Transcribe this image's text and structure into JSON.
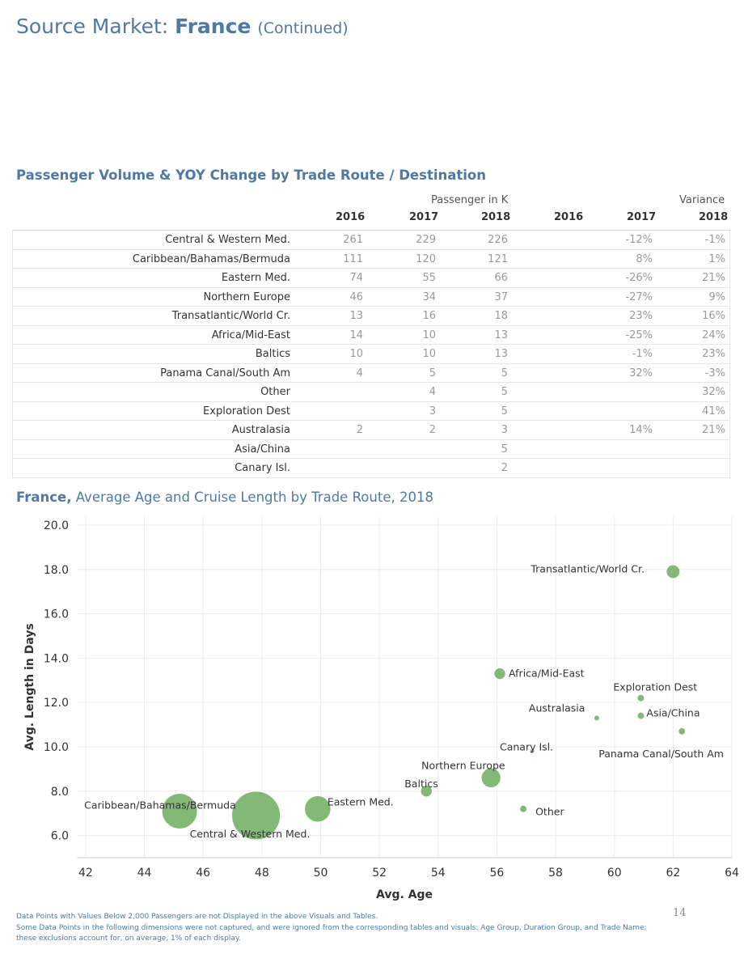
{
  "header": {
    "prefix": "Source Market:",
    "market": "France",
    "suffix": "(Continued)"
  },
  "table_section": {
    "title": "Passenger Volume & YOY Change by Trade Route / Destination",
    "group_passenger": "Passenger in K",
    "group_variance": "Variance",
    "years": [
      "2016",
      "2017",
      "2018",
      "2016",
      "2017",
      "2018"
    ],
    "rows": [
      {
        "route": "Central & Western Med.",
        "p2016": "261",
        "p2017": "229",
        "p2018": "226",
        "v2016": "",
        "v2017": "-12%",
        "v2018": "-1%"
      },
      {
        "route": "Caribbean/Bahamas/Bermuda",
        "p2016": "111",
        "p2017": "120",
        "p2018": "121",
        "v2016": "",
        "v2017": "8%",
        "v2018": "1%"
      },
      {
        "route": "Eastern Med.",
        "p2016": "74",
        "p2017": "55",
        "p2018": "66",
        "v2016": "",
        "v2017": "-26%",
        "v2018": "21%"
      },
      {
        "route": "Northern Europe",
        "p2016": "46",
        "p2017": "34",
        "p2018": "37",
        "v2016": "",
        "v2017": "-27%",
        "v2018": "9%"
      },
      {
        "route": "Transatlantic/World Cr.",
        "p2016": "13",
        "p2017": "16",
        "p2018": "18",
        "v2016": "",
        "v2017": "23%",
        "v2018": "16%"
      },
      {
        "route": "Africa/Mid-East",
        "p2016": "14",
        "p2017": "10",
        "p2018": "13",
        "v2016": "",
        "v2017": "-25%",
        "v2018": "24%"
      },
      {
        "route": "Baltics",
        "p2016": "10",
        "p2017": "10",
        "p2018": "13",
        "v2016": "",
        "v2017": "-1%",
        "v2018": "23%"
      },
      {
        "route": "Panama Canal/South Am",
        "p2016": "4",
        "p2017": "5",
        "p2018": "5",
        "v2016": "",
        "v2017": "32%",
        "v2018": "-3%"
      },
      {
        "route": "Other",
        "p2016": "",
        "p2017": "4",
        "p2018": "5",
        "v2016": "",
        "v2017": "",
        "v2018": "32%"
      },
      {
        "route": "Exploration Dest",
        "p2016": "",
        "p2017": "3",
        "p2018": "5",
        "v2016": "",
        "v2017": "",
        "v2018": "41%"
      },
      {
        "route": "Australasia",
        "p2016": "2",
        "p2017": "2",
        "p2018": "3",
        "v2016": "",
        "v2017": "14%",
        "v2018": "21%"
      },
      {
        "route": "Asia/China",
        "p2016": "",
        "p2017": "",
        "p2018": "5",
        "v2016": "",
        "v2017": "",
        "v2018": ""
      },
      {
        "route": "Canary Isl.",
        "p2016": "",
        "p2017": "",
        "p2018": "2",
        "v2016": "",
        "v2017": "",
        "v2018": ""
      }
    ]
  },
  "chart_section": {
    "title_market": "France,",
    "title_rest": " Average Age and Cruise Length by Trade Route, 2018"
  },
  "chart_data": {
    "type": "scatter",
    "title": "France, Average Age and Cruise Length by Trade Route, 2018",
    "xlabel": "Avg. Age",
    "ylabel": "Avg. Length in Days",
    "xlim": [
      41.7,
      64
    ],
    "ylim": [
      5.0,
      20.4
    ],
    "xticks": [
      "42",
      "44",
      "46",
      "48",
      "50",
      "52",
      "54",
      "56",
      "58",
      "60",
      "62",
      "64"
    ],
    "yticks": [
      "6.0",
      "8.0",
      "10.0",
      "12.0",
      "14.0",
      "16.0",
      "18.0",
      "20.0"
    ],
    "grid": true,
    "color": "#77b067",
    "points": [
      {
        "label": "Central & Western Med.",
        "x": 47.8,
        "y": 6.9,
        "size": 226
      },
      {
        "label": "Caribbean/Bahamas/Bermuda",
        "x": 45.2,
        "y": 7.1,
        "size": 121
      },
      {
        "label": "Eastern Med.",
        "x": 49.9,
        "y": 7.2,
        "size": 66
      },
      {
        "label": "Northern Europe",
        "x": 55.8,
        "y": 8.6,
        "size": 37
      },
      {
        "label": "Transatlantic/World Cr.",
        "x": 62.0,
        "y": 17.9,
        "size": 18
      },
      {
        "label": "Africa/Mid-East",
        "x": 56.1,
        "y": 13.3,
        "size": 13
      },
      {
        "label": "Baltics",
        "x": 53.6,
        "y": 8.0,
        "size": 13
      },
      {
        "label": "Panama Canal/South Am",
        "x": 62.3,
        "y": 10.7,
        "size": 5
      },
      {
        "label": "Other",
        "x": 56.9,
        "y": 7.2,
        "size": 5
      },
      {
        "label": "Exploration Dest",
        "x": 60.9,
        "y": 12.2,
        "size": 5
      },
      {
        "label": "Australasia",
        "x": 59.4,
        "y": 11.3,
        "size": 3
      },
      {
        "label": "Asia/China",
        "x": 60.9,
        "y": 11.4,
        "size": 5
      },
      {
        "label": "Canary Isl.",
        "x": 57.2,
        "y": 9.8,
        "size": 2
      }
    ]
  },
  "footnotes": {
    "line1": "Data Points with Values Below 2,000 Passengers are not Displayed in the above Visuals and Tables.",
    "line2": "Some Data Points in the following dimensions were not captured, and were ignored from the corresponding tables and visuals: Age Group, Duration Group, and Trade Name;",
    "line3": "these exclusions account for, on average, 1% of each display."
  },
  "page_number": "14"
}
